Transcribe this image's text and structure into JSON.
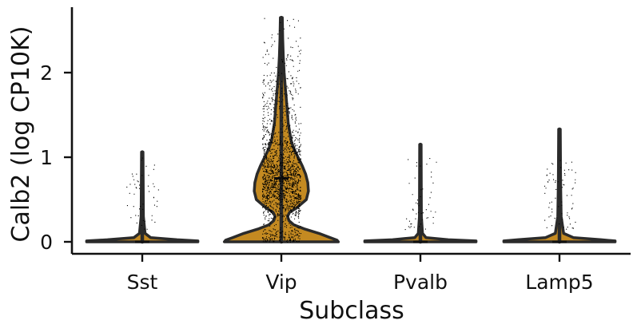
{
  "chart_data": {
    "type": "violin",
    "title": "",
    "xlabel": "Subclass",
    "ylabel": "Calb2 (log CP10K)",
    "categories": [
      "Sst",
      "Vip",
      "Pvalb",
      "Lamp5"
    ],
    "ylim": [
      -0.13,
      2.8
    ],
    "yticks": [
      0,
      1,
      2
    ],
    "grid": false,
    "legend": "none",
    "series": [
      {
        "name": "Sst",
        "color": "#c48a21",
        "max": 1.06,
        "median": 0.0,
        "points_shown": 50,
        "profile": [
          [
            0.0,
            0.4
          ],
          [
            0.01,
            0.4
          ],
          [
            0.025,
            0.25
          ],
          [
            0.05,
            0.06
          ],
          [
            0.1,
            0.02
          ],
          [
            0.3,
            0.008
          ],
          [
            1.06,
            0.005
          ]
        ]
      },
      {
        "name": "Vip",
        "color": "#c48a21",
        "max": 2.65,
        "median": 0.75,
        "points_shown": 1800,
        "profile": [
          [
            0.0,
            0.41
          ],
          [
            0.02,
            0.4
          ],
          [
            0.05,
            0.35
          ],
          [
            0.1,
            0.27
          ],
          [
            0.15,
            0.17
          ],
          [
            0.2,
            0.09
          ],
          [
            0.25,
            0.055
          ],
          [
            0.3,
            0.045
          ],
          [
            0.35,
            0.06
          ],
          [
            0.4,
            0.11
          ],
          [
            0.5,
            0.18
          ],
          [
            0.6,
            0.195
          ],
          [
            0.7,
            0.19
          ],
          [
            0.8,
            0.175
          ],
          [
            0.9,
            0.15
          ],
          [
            1.0,
            0.12
          ],
          [
            1.1,
            0.09
          ],
          [
            1.2,
            0.07
          ],
          [
            1.3,
            0.06
          ],
          [
            1.4,
            0.05
          ],
          [
            1.5,
            0.045
          ],
          [
            1.6,
            0.04
          ],
          [
            1.7,
            0.035
          ],
          [
            1.8,
            0.03
          ],
          [
            2.0,
            0.02
          ],
          [
            2.2,
            0.014
          ],
          [
            2.4,
            0.01
          ],
          [
            2.65,
            0.007
          ]
        ]
      },
      {
        "name": "Pvalb",
        "color": "#c48a21",
        "max": 1.15,
        "median": 0.0,
        "points_shown": 50,
        "profile": [
          [
            0.0,
            0.4
          ],
          [
            0.01,
            0.4
          ],
          [
            0.025,
            0.2
          ],
          [
            0.05,
            0.04
          ],
          [
            0.1,
            0.015
          ],
          [
            0.3,
            0.007
          ],
          [
            1.15,
            0.005
          ]
        ]
      },
      {
        "name": "Lamp5",
        "color": "#c48a21",
        "max": 1.33,
        "median": 0.0,
        "points_shown": 70,
        "profile": [
          [
            0.0,
            0.4
          ],
          [
            0.01,
            0.4
          ],
          [
            0.025,
            0.3
          ],
          [
            0.05,
            0.1
          ],
          [
            0.1,
            0.03
          ],
          [
            0.3,
            0.012
          ],
          [
            0.7,
            0.008
          ],
          [
            1.33,
            0.006
          ]
        ]
      }
    ]
  }
}
